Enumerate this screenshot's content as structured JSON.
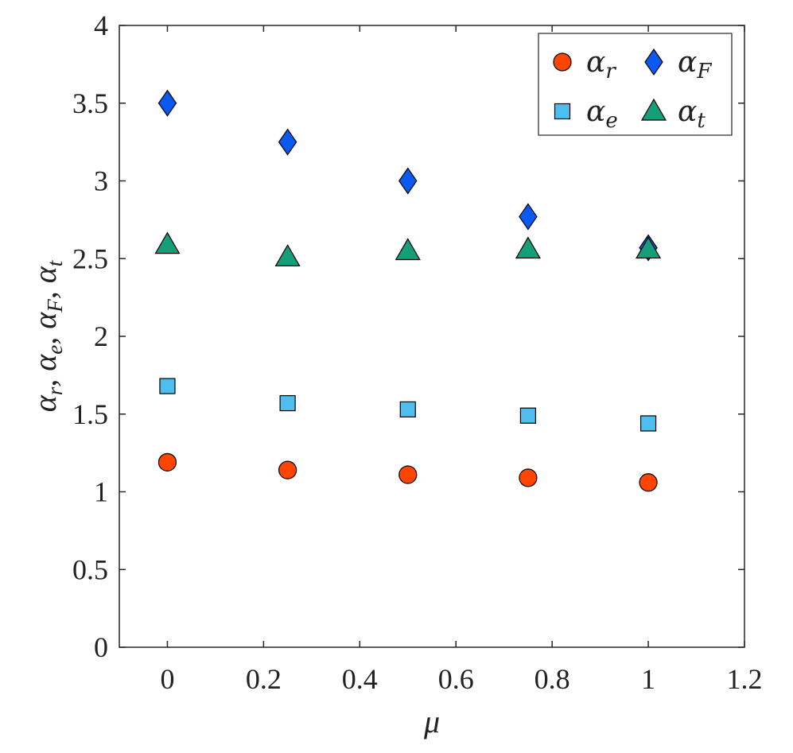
{
  "chart_data": {
    "type": "scatter",
    "title": "",
    "xlabel": "μ",
    "ylabel_parts": [
      {
        "base": "α",
        "sub": "r",
        "sep": ", "
      },
      {
        "base": "α",
        "sub": "e",
        "sep": ", "
      },
      {
        "base": "α",
        "sub": "F",
        "sep": ", "
      },
      {
        "base": "α",
        "sub": "t",
        "sep": ""
      }
    ],
    "xlim": [
      -0.1,
      1.2
    ],
    "ylim": [
      0,
      4
    ],
    "xticks": [
      0,
      0.2,
      0.4,
      0.6,
      0.8,
      1,
      1.2
    ],
    "xtick_labels": [
      "0",
      "0.2",
      "0.4",
      "0.6",
      "0.8",
      "1",
      "1.2"
    ],
    "yticks": [
      0,
      0.5,
      1,
      1.5,
      2,
      2.5,
      3,
      3.5,
      4
    ],
    "ytick_labels": [
      "0",
      "0.5",
      "1",
      "1.5",
      "2",
      "2.5",
      "3",
      "3.5",
      "4"
    ],
    "grid": false,
    "legend_position": "top-right",
    "x": [
      0,
      0.25,
      0.5,
      0.75,
      1
    ],
    "series": [
      {
        "key": "r",
        "name_base": "α",
        "name_sub": "r",
        "marker": "circle",
        "color": "#FF4500",
        "values": [
          1.19,
          1.14,
          1.11,
          1.09,
          1.06
        ]
      },
      {
        "key": "F",
        "name_base": "α",
        "name_sub": "F",
        "marker": "diamond",
        "color": "#0A5AF0",
        "values": [
          3.5,
          3.25,
          3.0,
          2.77,
          2.57
        ]
      },
      {
        "key": "e",
        "name_base": "α",
        "name_sub": "e",
        "marker": "square",
        "color": "#4DBEEE",
        "values": [
          1.68,
          1.57,
          1.53,
          1.49,
          1.44
        ]
      },
      {
        "key": "t",
        "name_base": "α",
        "name_sub": "t",
        "marker": "triangle",
        "color": "#149E7A",
        "values": [
          2.59,
          2.51,
          2.55,
          2.56,
          2.56
        ]
      }
    ]
  }
}
